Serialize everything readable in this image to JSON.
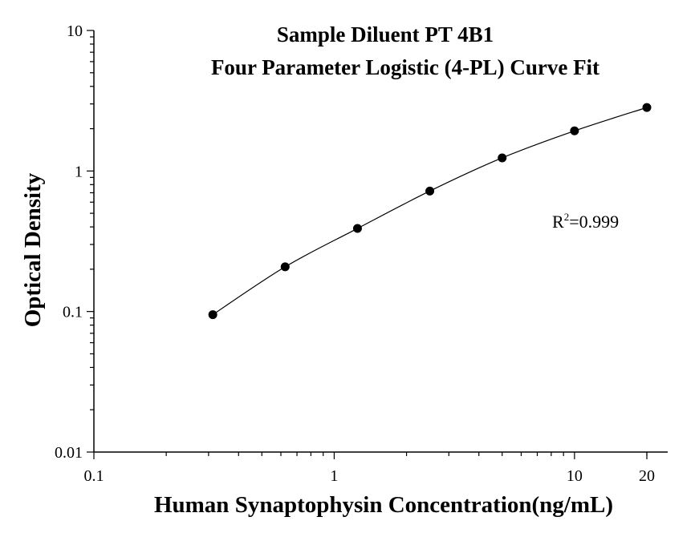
{
  "chart_data": {
    "type": "scatter",
    "title": "Sample Diluent PT 4B1",
    "subtitle": "Four Parameter Logistic (4-PL) Curve Fit",
    "xlabel": "Human Synaptophysin Concentration(ng/mL)",
    "ylabel": "Optical Density",
    "xscale": "log",
    "yscale": "log",
    "xlim": [
      0.1,
      25
    ],
    "ylim": [
      0.01,
      10
    ],
    "x_ticks": [
      {
        "value": 0.1,
        "label": "0.1"
      },
      {
        "value": 1,
        "label": "1"
      },
      {
        "value": 10,
        "label": "10"
      },
      {
        "value": 20,
        "label": "20"
      }
    ],
    "y_ticks": [
      {
        "value": 0.01,
        "label": "0.01"
      },
      {
        "value": 0.1,
        "label": "0.1"
      },
      {
        "value": 1,
        "label": "1"
      },
      {
        "value": 10,
        "label": "10"
      }
    ],
    "grid": false,
    "series": [
      {
        "x": [
          0.3125,
          0.625,
          1.25,
          2.5,
          5,
          10,
          20
        ],
        "y": [
          0.095,
          0.208,
          0.39,
          0.72,
          1.24,
          1.93,
          2.83
        ],
        "color": "#000000",
        "marker": "circle",
        "fit_line": true
      }
    ],
    "annotation": {
      "text_prefix": "R",
      "superscript": "2",
      "text_suffix": "=0.999"
    }
  }
}
